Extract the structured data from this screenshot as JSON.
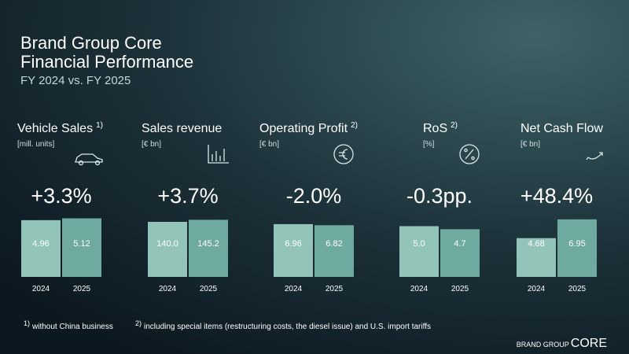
{
  "header": {
    "title": "Brand Group Core",
    "subtitle": "Financial Performance",
    "period": "FY 2024 vs. FY 2025"
  },
  "chart_data": [
    {
      "type": "bar",
      "title": "Vehicle Sales",
      "note": "1)",
      "unit": "[mill. units]",
      "change": "+3.3%",
      "categories": [
        "2024",
        "2025"
      ],
      "values": [
        4.96,
        5.12
      ],
      "value_labels": [
        "4.96",
        "5.12"
      ],
      "colors": [
        "#93c4ba",
        "#6eaaa0"
      ],
      "ylim": [
        0,
        5.5
      ]
    },
    {
      "type": "bar",
      "title": "Sales revenue",
      "unit": "[€ bn]",
      "change": "+3.7%",
      "categories": [
        "2024",
        "2025"
      ],
      "values": [
        140.0,
        145.2
      ],
      "value_labels": [
        "140.0",
        "145.2"
      ],
      "colors": [
        "#93c4ba",
        "#6eaaa0"
      ],
      "ylim": [
        0,
        160
      ]
    },
    {
      "type": "bar",
      "title": "Operating Profit",
      "note": "2)",
      "unit": "[€ bn]",
      "change": "-2.0%",
      "categories": [
        "2024",
        "2025"
      ],
      "values": [
        6.96,
        6.82
      ],
      "value_labels": [
        "6.96",
        "6.82"
      ],
      "colors": [
        "#93c4ba",
        "#6eaaa0"
      ],
      "ylim": [
        0,
        8.3
      ]
    },
    {
      "type": "bar",
      "title": "RoS",
      "note": "2)",
      "unit": "[%]",
      "change": "-0.3pp.",
      "categories": [
        "2024",
        "2025"
      ],
      "values": [
        5.0,
        4.7
      ],
      "value_labels": [
        "5.0",
        "4.7"
      ],
      "colors": [
        "#93c4ba",
        "#6eaaa0"
      ],
      "ylim": [
        0,
        6.2
      ]
    },
    {
      "type": "bar",
      "title": "Net Cash Flow",
      "unit": "[€ bn]",
      "change": "+48.4%",
      "categories": [
        "2024",
        "2025"
      ],
      "values": [
        4.68,
        6.95
      ],
      "value_labels": [
        "4.68",
        "6.95"
      ],
      "colors": [
        "#93c4ba",
        "#6eaaa0"
      ],
      "ylim": [
        0,
        7.6
      ]
    }
  ],
  "footnotes": [
    {
      "mark": "1)",
      "text": "without China business"
    },
    {
      "mark": "2)",
      "text": "including special items (restructuring costs, the diesel issue) and U.S. import tariffs"
    }
  ],
  "logo": {
    "small": "BRAND GROUP",
    "large": "CORE"
  }
}
